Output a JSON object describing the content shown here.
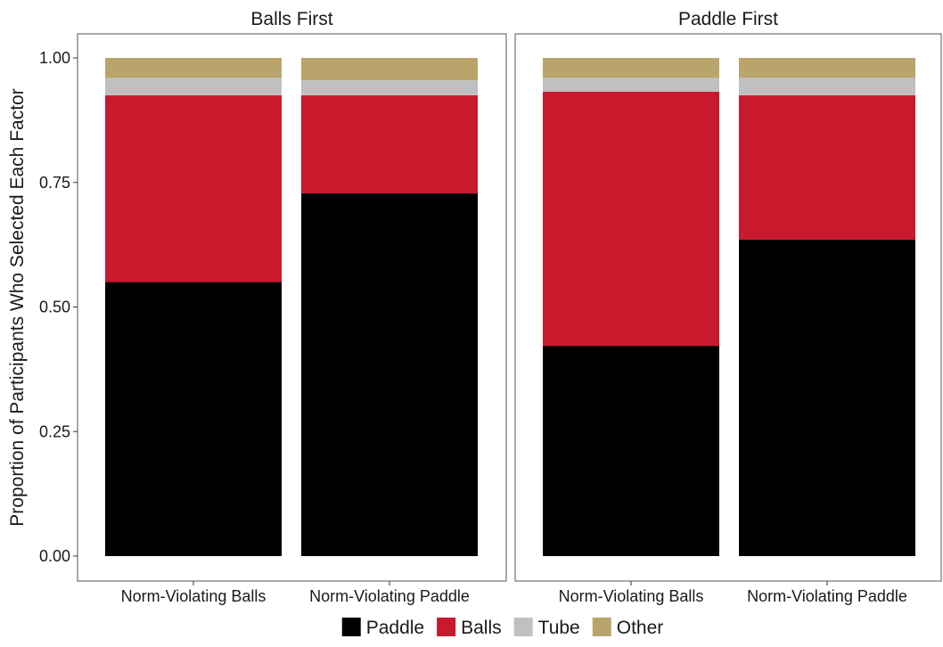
{
  "chart_data": {
    "type": "bar",
    "stacked": true,
    "ylabel": "Proportion of Participants Who Selected Each Factor",
    "ylim": [
      0,
      1
    ],
    "yticks": [
      "0.00",
      "0.25",
      "0.50",
      "0.75",
      "1.00"
    ],
    "ytick_values": [
      0,
      0.25,
      0.5,
      0.75,
      1.0
    ],
    "legend_position": "bottom",
    "series": [
      {
        "name": "Paddle",
        "color": "#000000"
      },
      {
        "name": "Balls",
        "color": "#c8192d"
      },
      {
        "name": "Tube",
        "color": "#c0c0c0"
      },
      {
        "name": "Other",
        "color": "#b9a56c"
      }
    ],
    "facets": [
      {
        "title": "Balls First",
        "categories": [
          "Norm-Violating Balls",
          "Norm-Violating Paddle"
        ],
        "values": {
          "Paddle": [
            0.55,
            0.728
          ],
          "Balls": [
            0.375,
            0.197
          ],
          "Tube": [
            0.035,
            0.03
          ],
          "Other": [
            0.04,
            0.045
          ]
        }
      },
      {
        "title": "Paddle First",
        "categories": [
          "Norm-Violating Balls",
          "Norm-Violating Paddle"
        ],
        "values": {
          "Paddle": [
            0.422,
            0.635
          ],
          "Balls": [
            0.51,
            0.29
          ],
          "Tube": [
            0.028,
            0.035
          ],
          "Other": [
            0.04,
            0.04
          ]
        }
      }
    ]
  }
}
